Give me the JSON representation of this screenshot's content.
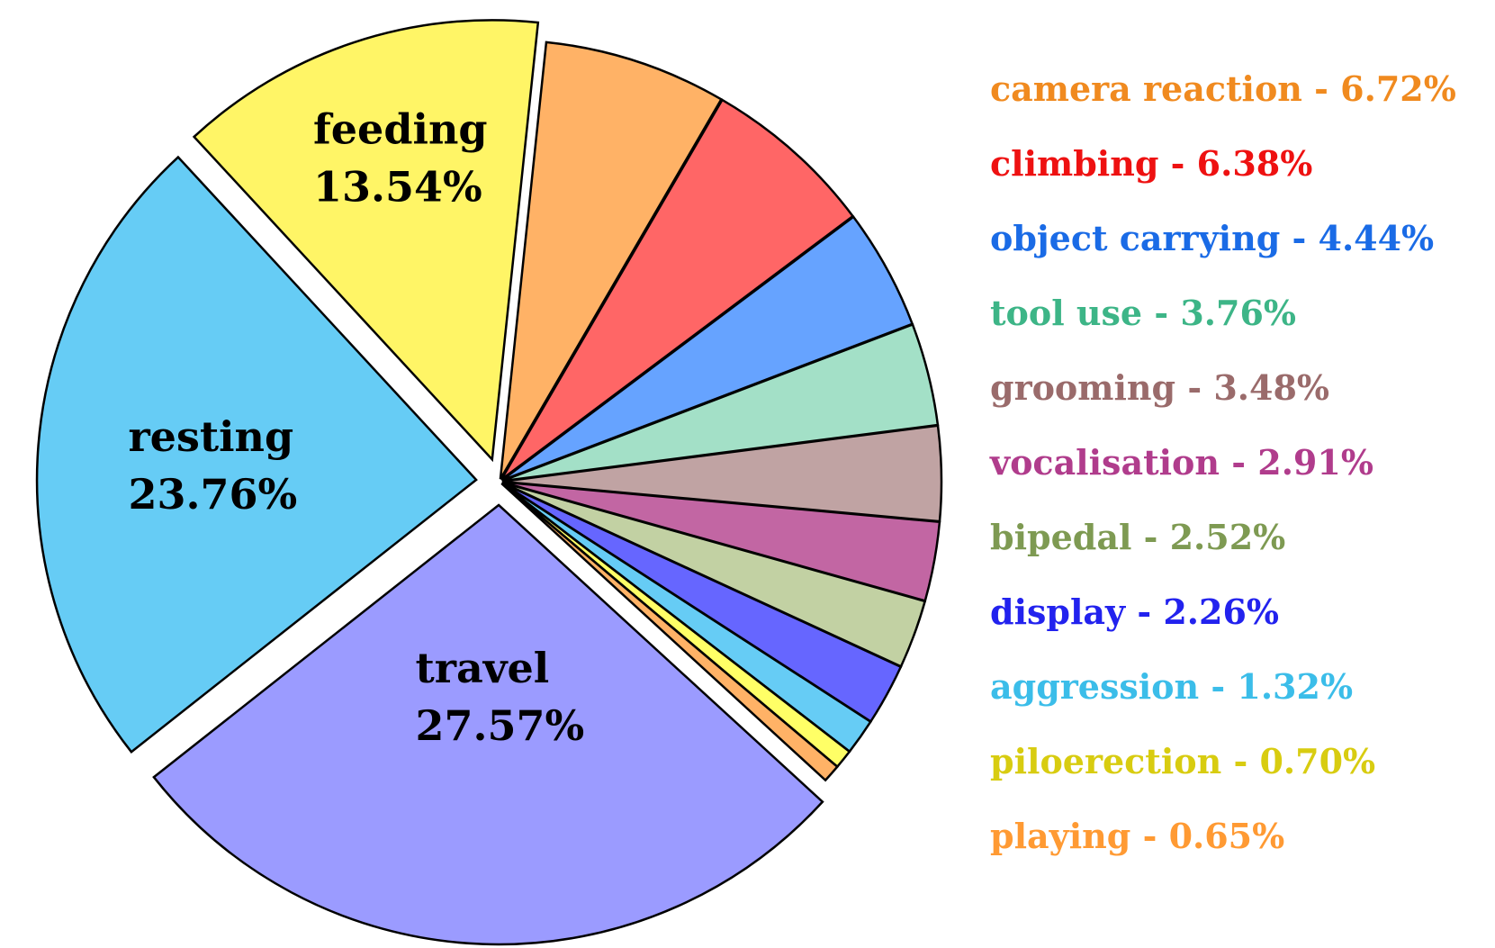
{
  "chart_data": {
    "type": "pie",
    "start_angle_deg": 6,
    "direction": "clockwise",
    "slices": [
      {
        "label": "camera reaction",
        "value": 6.72,
        "text": "camera reaction - 6.72%",
        "color": "#ffb266",
        "text_color": "#f08a1f",
        "exploded": false,
        "in_legend": true
      },
      {
        "label": "climbing",
        "value": 6.38,
        "text": "climbing - 6.38%",
        "color": "#ff6666",
        "text_color": "#ee1111",
        "exploded": false,
        "in_legend": true
      },
      {
        "label": "object carrying",
        "value": 4.44,
        "text": "object carrying - 4.44%",
        "color": "#66a3ff",
        "text_color": "#1a6be6",
        "exploded": false,
        "in_legend": true
      },
      {
        "label": "tool use",
        "value": 3.76,
        "text": "tool use - 3.76%",
        "color": "#a3e0c7",
        "text_color": "#3db587",
        "exploded": false,
        "in_legend": true
      },
      {
        "label": "grooming",
        "value": 3.48,
        "text": "grooming - 3.48%",
        "color": "#c0a3a3",
        "text_color": "#9a6b6b",
        "exploded": false,
        "in_legend": true
      },
      {
        "label": "vocalisation",
        "value": 2.91,
        "text": "vocalisation - 2.91%",
        "color": "#c266a3",
        "text_color": "#b03c8c",
        "exploded": false,
        "in_legend": true
      },
      {
        "label": "bipedal",
        "value": 2.52,
        "text": "bipedal - 2.52%",
        "color": "#c2d1a3",
        "text_color": "#7e9a52",
        "exploded": false,
        "in_legend": true
      },
      {
        "label": "display",
        "value": 2.26,
        "text": "display - 2.26%",
        "color": "#6666ff",
        "text_color": "#2222ee",
        "exploded": false,
        "in_legend": true
      },
      {
        "label": "aggression",
        "value": 1.32,
        "text": "aggression - 1.32%",
        "color": "#66ccf5",
        "text_color": "#3bbde9",
        "exploded": false,
        "in_legend": true
      },
      {
        "label": "piloerection",
        "value": 0.7,
        "text": "piloerection - 0.70%",
        "color": "#ffff66",
        "text_color": "#d8cc10",
        "exploded": false,
        "in_legend": true
      },
      {
        "label": "playing",
        "value": 0.65,
        "text": "playing - 0.65%",
        "color": "#ffb266",
        "text_color": "#ff9a33",
        "exploded": false,
        "in_legend": true
      },
      {
        "label": "travel",
        "value": 27.57,
        "text": "travel",
        "pct_text": "27.57%",
        "color": "#9b9bff",
        "exploded": true,
        "in_legend": false
      },
      {
        "label": "resting",
        "value": 23.76,
        "text": "resting",
        "pct_text": "23.76%",
        "color": "#66ccf5",
        "exploded": true,
        "in_legend": false
      },
      {
        "label": "feeding",
        "value": 13.54,
        "text": "feeding",
        "pct_text": "13.54%",
        "color": "#fff566",
        "exploded": true,
        "in_legend": false
      }
    ]
  }
}
